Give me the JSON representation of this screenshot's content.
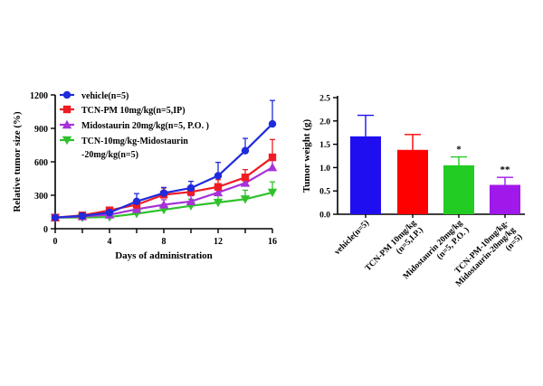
{
  "chart_data": [
    {
      "type": "line",
      "xlabel": "Days of  administration",
      "ylabel": "Relative tumor size (%)",
      "xlim": [
        0,
        16
      ],
      "ylim": [
        0,
        1200
      ],
      "xticks": [
        "0",
        "4",
        "8",
        "12",
        "16"
      ],
      "yticks": [
        "0",
        "300",
        "600",
        "900",
        "1200"
      ],
      "legend_position": "top-left",
      "series": [
        {
          "name": "vehicle(n=5)",
          "color": "#1f2bdc",
          "marker": "circle",
          "x": [
            0,
            2,
            4,
            6,
            8,
            10,
            12,
            14,
            16
          ],
          "y": [
            100,
            115,
            145,
            245,
            320,
            365,
            475,
            700,
            940
          ],
          "err": [
            15,
            15,
            20,
            70,
            50,
            60,
            120,
            110,
            210
          ]
        },
        {
          "name": "TCN-PM 10mg/kg(n=5,IP)",
          "color": "#ee1c24",
          "marker": "square",
          "x": [
            0,
            2,
            4,
            6,
            8,
            10,
            12,
            14,
            16
          ],
          "y": [
            100,
            120,
            165,
            215,
            305,
            330,
            375,
            460,
            640
          ],
          "err": [
            15,
            15,
            25,
            40,
            60,
            50,
            65,
            70,
            160
          ]
        },
        {
          "name": "Midostaurin 20mg/kg(n=5, P.O. )",
          "color": "#a632d8",
          "marker": "triangle-up",
          "x": [
            0,
            2,
            4,
            6,
            8,
            10,
            12,
            14,
            16
          ],
          "y": [
            100,
            110,
            125,
            175,
            215,
            245,
            325,
            410,
            550
          ],
          "err": [
            10,
            15,
            20,
            40,
            45,
            50,
            60,
            70,
            90
          ]
        },
        {
          "name": "TCN-10mg/kg-Midostaurin\n-20mg/kg(n=5)",
          "color": "#2ec12b",
          "marker": "triangle-down",
          "x": [
            0,
            2,
            4,
            6,
            8,
            10,
            12,
            14,
            16
          ],
          "y": [
            100,
            100,
            105,
            135,
            170,
            205,
            235,
            265,
            325
          ],
          "err": [
            10,
            10,
            15,
            30,
            50,
            60,
            70,
            80,
            95
          ]
        }
      ]
    },
    {
      "type": "bar",
      "ylabel": "Tumor weight (g)",
      "ylim": [
        0,
        2.5
      ],
      "yticks": [
        "0.0",
        "0.5",
        "1.0",
        "1.5",
        "2.0",
        "2.5"
      ],
      "categories": [
        "vehicle(n=5)",
        "TCN-PM 10mg/kg\n(n=5,I.P.)",
        "Midostaurin 20mg/kg\n(n=5, P.O. )",
        "TCN-PM-10mg/kg-\nMidostaurin-20mg/kg\n(n=5)"
      ],
      "values": [
        1.67,
        1.38,
        1.05,
        0.63
      ],
      "errors": [
        0.45,
        0.33,
        0.18,
        0.16
      ],
      "colors": [
        "#1f0ff0",
        "#ff0000",
        "#22cc22",
        "#a018ea"
      ],
      "annotations": [
        "",
        "",
        "*",
        "**"
      ]
    }
  ]
}
